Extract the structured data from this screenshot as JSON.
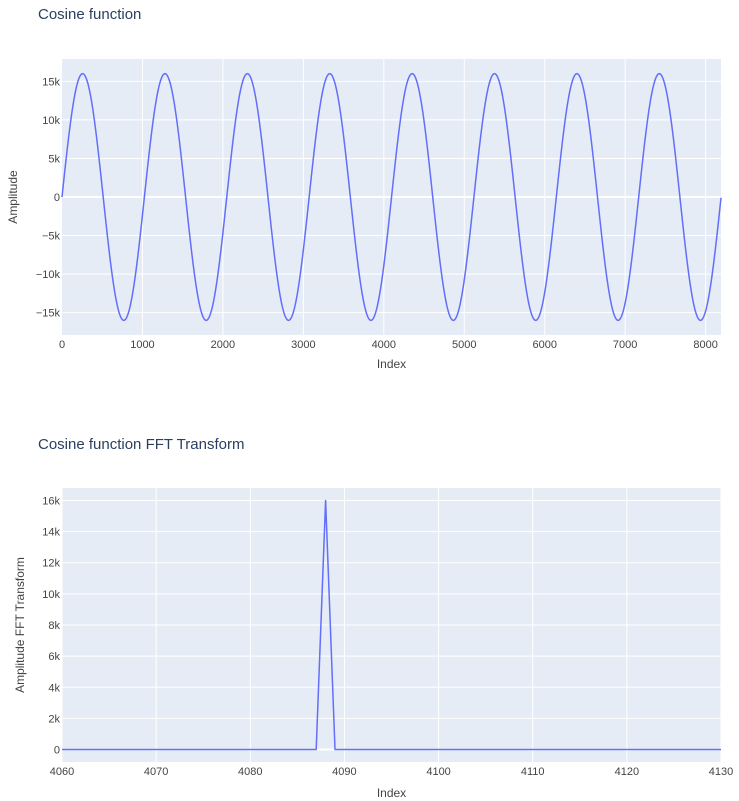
{
  "chart_data": [
    {
      "type": "line",
      "title": "Cosine function",
      "xlabel": "Index",
      "ylabel": "Amplitude",
      "xlim": [
        0,
        8191
      ],
      "ylim": [
        -17900,
        17900
      ],
      "x_ticks": [
        0,
        1000,
        2000,
        3000,
        4000,
        5000,
        6000,
        7000,
        8000
      ],
      "x_tick_labels": [
        "0",
        "1000",
        "2000",
        "3000",
        "4000",
        "5000",
        "6000",
        "7000",
        "8000"
      ],
      "y_ticks": [
        -15000,
        -10000,
        -5000,
        0,
        5000,
        10000,
        15000
      ],
      "y_tick_labels": [
        "−15k",
        "−10k",
        "−5k",
        "0",
        "5k",
        "10k",
        "15k"
      ],
      "grid": true,
      "line_color": "#636efa",
      "series": [
        {
          "amplitude": 16000,
          "cycles": 8,
          "n_points": 8192
        }
      ]
    },
    {
      "type": "line",
      "title": "Cosine function FFT Transform",
      "xlabel": "Index",
      "ylabel": "Amplitude FFT Transform",
      "xlim": [
        4060,
        4130
      ],
      "ylim": [
        -800,
        16800
      ],
      "x_ticks": [
        4060,
        4070,
        4080,
        4090,
        4100,
        4110,
        4120,
        4130
      ],
      "x_tick_labels": [
        "4060",
        "4070",
        "4080",
        "4090",
        "4100",
        "4110",
        "4120",
        "4130"
      ],
      "y_ticks": [
        0,
        2000,
        4000,
        6000,
        8000,
        10000,
        12000,
        14000,
        16000
      ],
      "y_tick_labels": [
        "0",
        "2k",
        "4k",
        "6k",
        "8k",
        "10k",
        "12k",
        "14k",
        "16k"
      ],
      "grid": true,
      "line_color": "#636efa",
      "series": [
        {
          "x": [
            4060,
            4087,
            4088,
            4089,
            4130
          ],
          "y": [
            0,
            0,
            16000,
            0,
            0
          ]
        }
      ]
    }
  ]
}
